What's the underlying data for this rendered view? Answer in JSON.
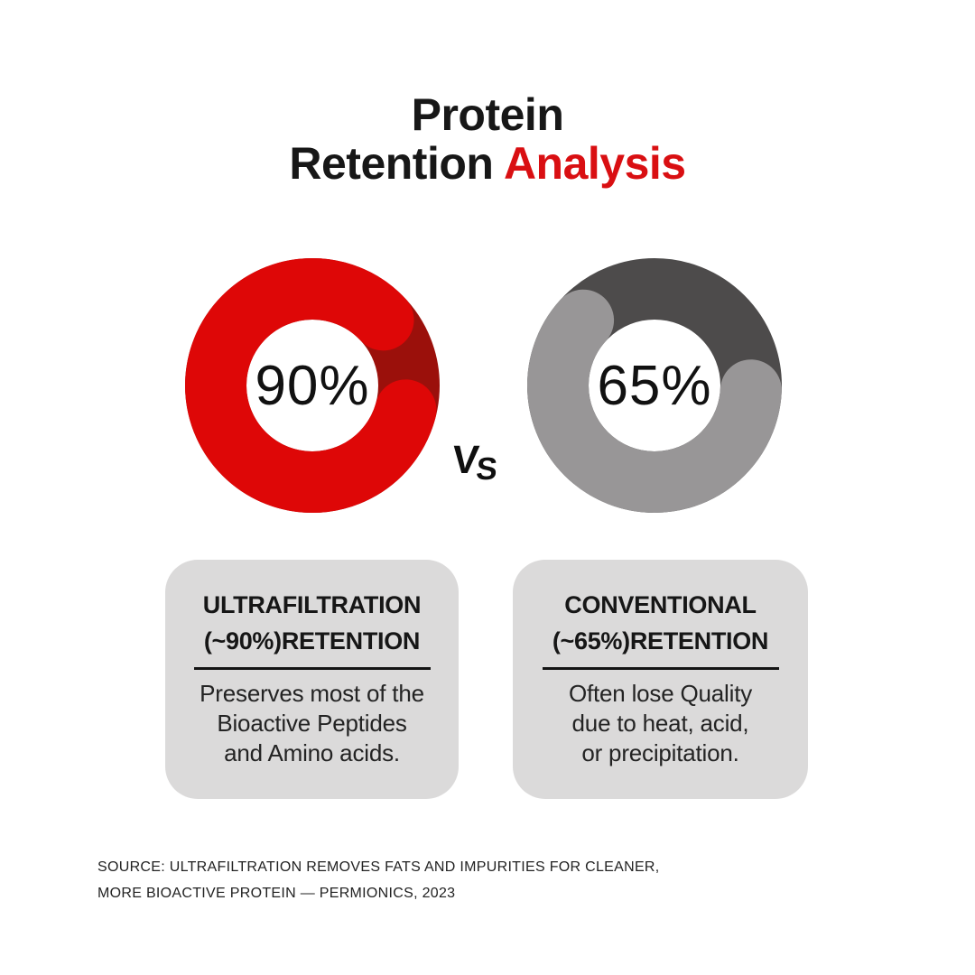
{
  "title": {
    "line1": "Protein",
    "line2_black": "Retention ",
    "line2_accent": "Analysis"
  },
  "vs": {
    "first": "V",
    "second": "S"
  },
  "chart_data": {
    "type": "donut",
    "unit": "%",
    "description": "Protein retention comparison between ultrafiltration and conventional processing",
    "charts": [
      {
        "name": "Ultrafiltration",
        "value": 90,
        "remainder": 10,
        "center_label": "90%",
        "arc_color": "#DE0707",
        "remainder_color": "#9B100B"
      },
      {
        "name": "Conventional",
        "value": 65,
        "remainder": 35,
        "center_label": "65%",
        "arc_color": "#989697",
        "remainder_color": "#4D4B4B"
      }
    ]
  },
  "cards": [
    {
      "heading": [
        "ULTRAFILTRATION",
        "(~90%)RETENTION"
      ],
      "body": [
        "Preserves most of the",
        "Bioactive Peptides",
        "and Amino acids."
      ]
    },
    {
      "heading": [
        "CONVENTIONAL",
        "(~65%)RETENTION"
      ],
      "body": [
        "Often lose Quality",
        "due to heat, acid,",
        "or precipitation."
      ]
    }
  ],
  "source": {
    "line1": "SOURCE: ULTRAFILTRATION REMOVES FATS AND IMPURITIES FOR CLEANER,",
    "line2": "MORE BIOACTIVE PROTEIN — PERMIONICS, 2023"
  },
  "colors": {
    "background": "#FFFFFF",
    "title_black": "#171717",
    "title_red": "#D90F12",
    "card_bg": "#DBDADA",
    "divider": "#141414",
    "percent_text": "#111111"
  }
}
